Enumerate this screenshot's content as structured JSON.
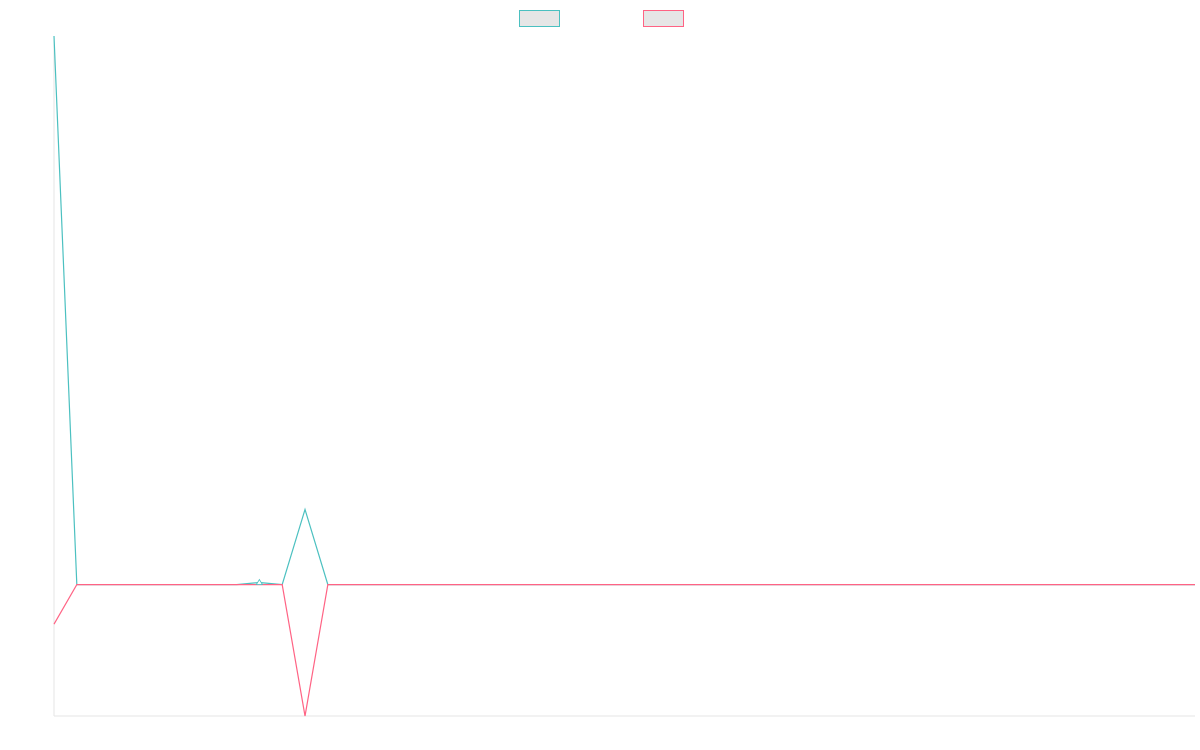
{
  "chart_data": {
    "type": "line",
    "title": "",
    "xlabel": "",
    "ylabel": "",
    "ylim": [
      -6.3,
      26.3
    ],
    "grid": false,
    "legend_placement": "top-center",
    "x_count": 51,
    "series": [
      {
        "name": "",
        "color": "#4bc0c0",
        "values": [
          26.3,
          0,
          0,
          0,
          0,
          0,
          0,
          0,
          0,
          0.1,
          0,
          3.6,
          0,
          0,
          0,
          0,
          0,
          0,
          0,
          0,
          0,
          0,
          0,
          0,
          0,
          0,
          0,
          0,
          0,
          0,
          0,
          0,
          0,
          0,
          0,
          0,
          0,
          0,
          0,
          0,
          0,
          0,
          0,
          0,
          0,
          0,
          0,
          0,
          0,
          0,
          0
        ],
        "fill": "rgba(75,192,192,0.2)"
      },
      {
        "name": "",
        "color": "#ff6384",
        "values": [
          -1.9,
          0,
          0,
          0,
          0,
          0,
          0,
          0,
          0,
          0,
          0,
          -6.3,
          0,
          0,
          0,
          0,
          0,
          0,
          0,
          0,
          0,
          0,
          0,
          0,
          0,
          0,
          0,
          0,
          0,
          0,
          0,
          0,
          0,
          0,
          0,
          0,
          0,
          0,
          0,
          0,
          0,
          0,
          0,
          0,
          0,
          0,
          0,
          0,
          0,
          0,
          0
        ],
        "fill": "rgba(255,99,132,0.2)"
      }
    ]
  }
}
